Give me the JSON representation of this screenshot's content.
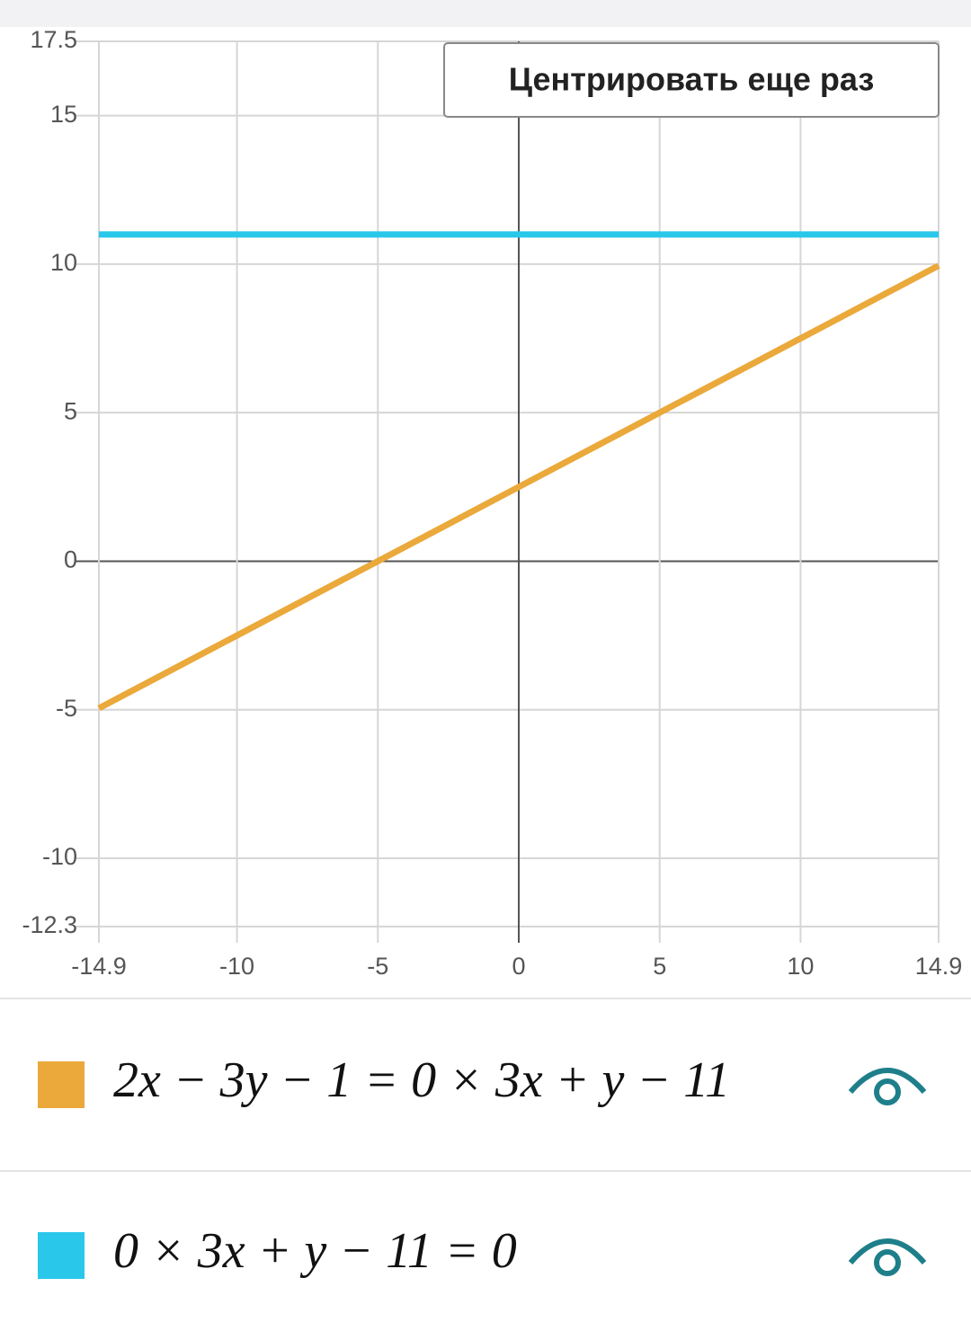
{
  "button": "Центрировать еще раз",
  "chart_data": {
    "type": "line",
    "xlim": [
      -14.9,
      14.9
    ],
    "ylim": [
      -12.3,
      17.5
    ],
    "xticks": [
      -14.9,
      -10,
      -5,
      0,
      5,
      10,
      14.9
    ],
    "yticks": [
      -12.3,
      -10,
      -5,
      0,
      5,
      10,
      15,
      17.5
    ],
    "grid": true,
    "series": [
      {
        "name": "2x − 3y − 1 = 0 × 3x + y − 11",
        "color": "#eaa93a",
        "x": [
          -14.9,
          14.9
        ],
        "values": [
          -4.95,
          9.95
        ]
      },
      {
        "name": "0 × 3x + y − 11 = 0",
        "color": "#29c8ea",
        "x": [
          -14.9,
          14.9
        ],
        "values": [
          11,
          11
        ]
      }
    ]
  }
}
